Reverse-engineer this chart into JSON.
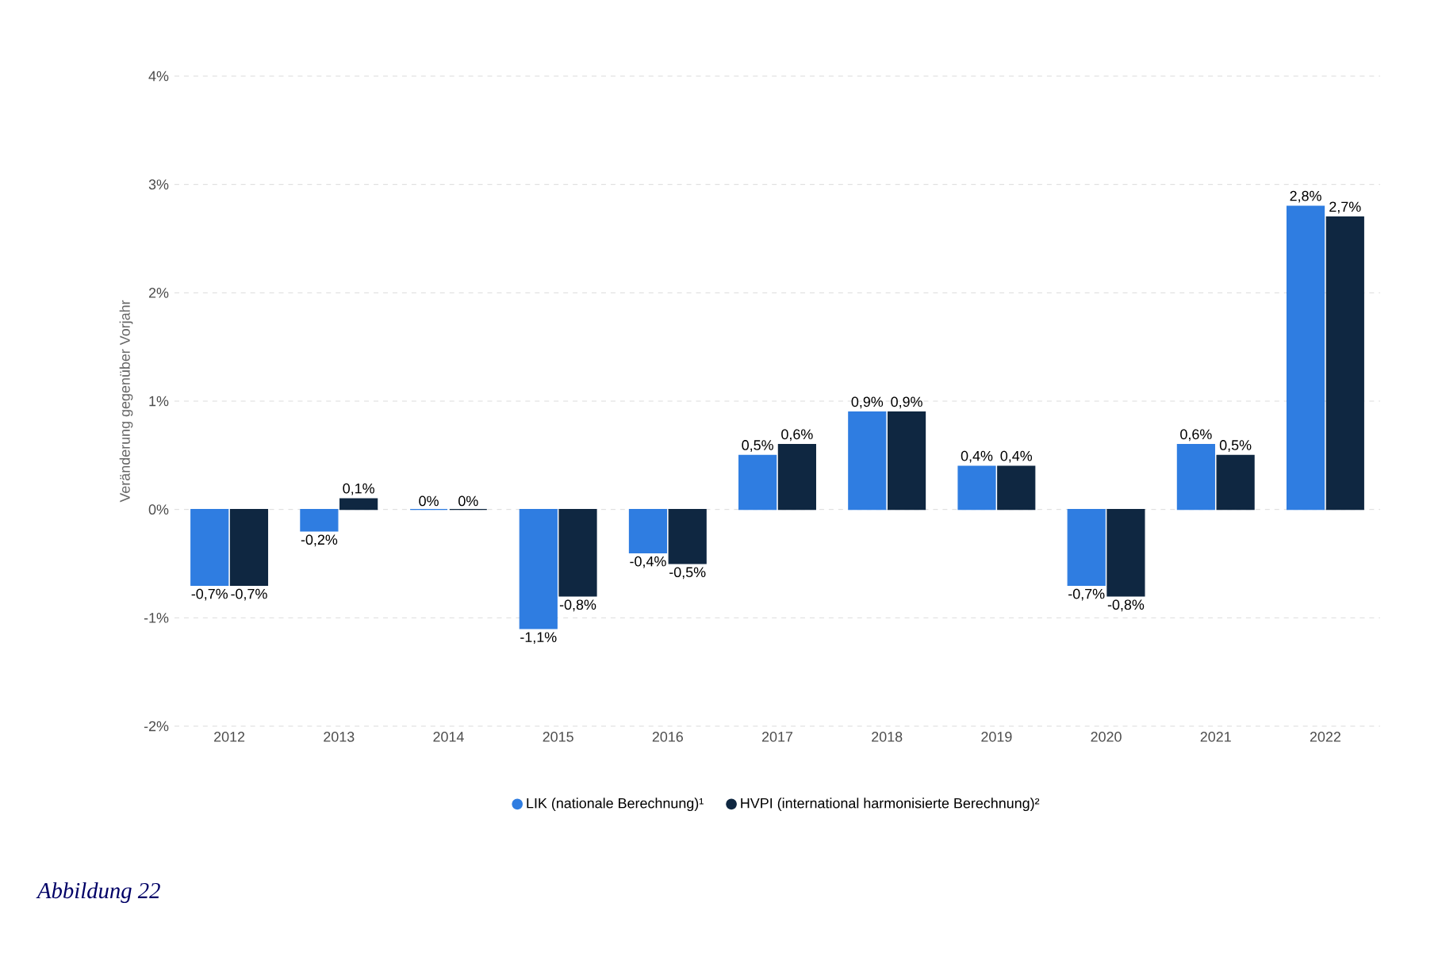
{
  "chart_data": {
    "type": "bar",
    "ylabel": "Veränderung gegenüber Vorjahr",
    "categories": [
      "2012",
      "2013",
      "2014",
      "2015",
      "2016",
      "2017",
      "2018",
      "2019",
      "2020",
      "2021",
      "2022"
    ],
    "series": [
      {
        "name": "LIK (nationale Berechnung)¹",
        "color": "#2f7de1",
        "values": [
          -0.7,
          -0.2,
          0,
          -1.1,
          -0.4,
          0.5,
          0.9,
          0.4,
          -0.7,
          0.6,
          2.8
        ],
        "value_labels": [
          "-0,7%",
          "-0,2%",
          "0%",
          "-1,1%",
          "-0,4%",
          "0,5%",
          "0,9%",
          "0,4%",
          "-0,7%",
          "0,6%",
          "2,8%"
        ]
      },
      {
        "name": "HVPI (international harmonisierte Berechnung)²",
        "color": "#0f2741",
        "values": [
          -0.7,
          0.1,
          0,
          -0.8,
          -0.5,
          0.6,
          0.9,
          0.4,
          -0.8,
          0.5,
          2.7
        ],
        "value_labels": [
          "-0,7%",
          "0,1%",
          "0%",
          "-0,8%",
          "-0,5%",
          "0,6%",
          "0,9%",
          "0,4%",
          "-0,8%",
          "0,5%",
          "2,7%"
        ]
      }
    ],
    "ylim": [
      -2,
      4
    ],
    "yticks": [
      {
        "value": -2,
        "label": "-2%"
      },
      {
        "value": -1,
        "label": "-1%"
      },
      {
        "value": 0,
        "label": "0%"
      },
      {
        "value": 1,
        "label": "1%"
      },
      {
        "value": 2,
        "label": "2%"
      },
      {
        "value": 3,
        "label": "3%"
      },
      {
        "value": 4,
        "label": "4%"
      }
    ],
    "grid": "y",
    "legend": "bottom",
    "annotations": [
      "Abbildung 22"
    ]
  }
}
